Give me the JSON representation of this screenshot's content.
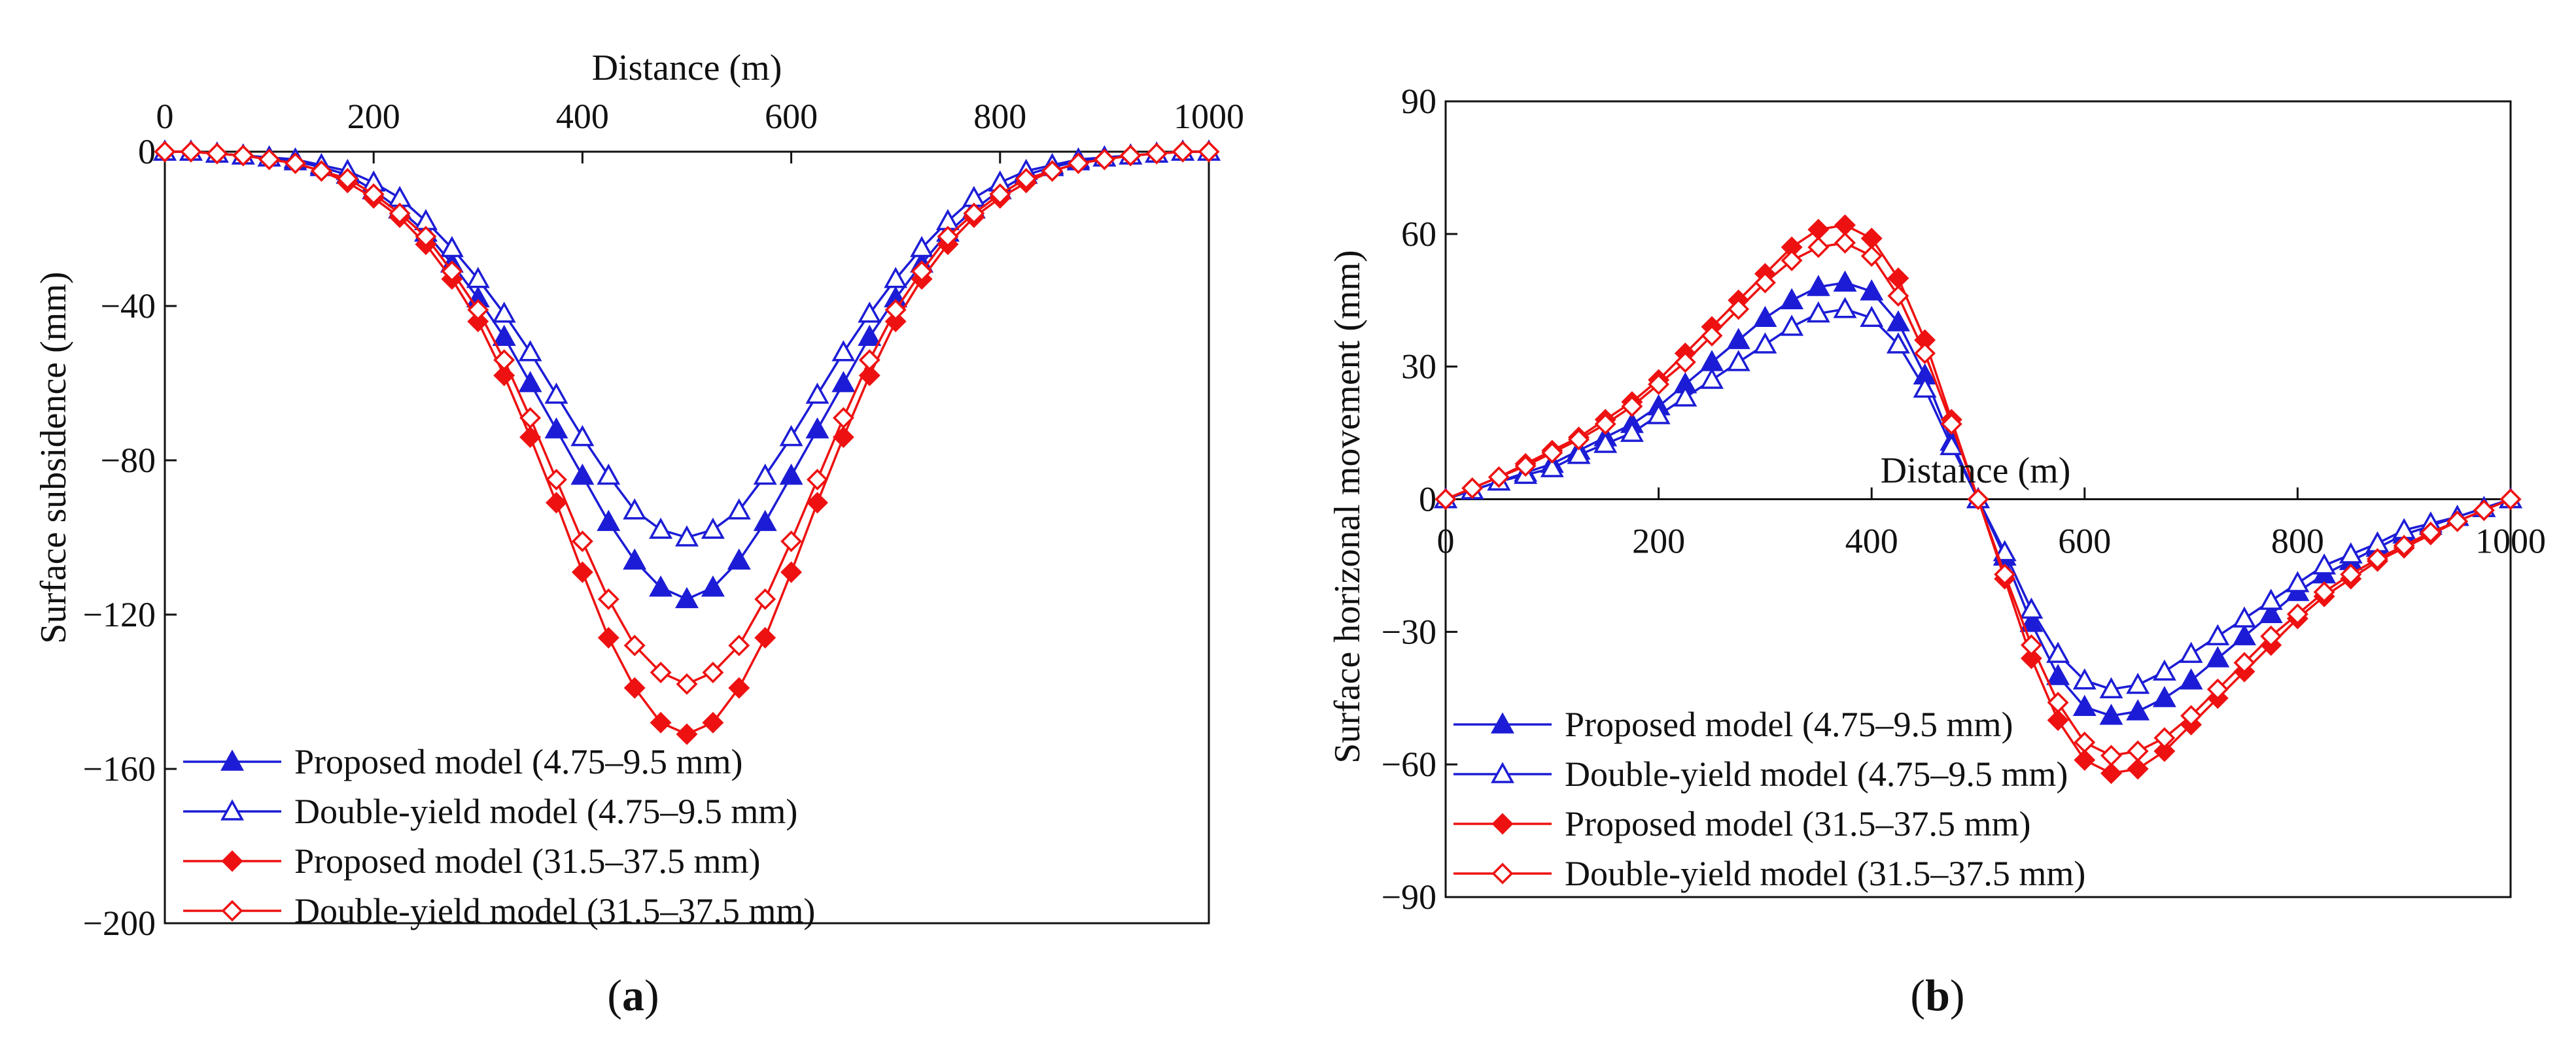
{
  "colors": {
    "proposed_small": "#1c1cd6",
    "double_small": "#1c1cd6",
    "proposed_large": "#ee1111",
    "double_large": "#ee1111",
    "axis": "#111111"
  },
  "chart_data": [
    {
      "id": "a",
      "type": "line",
      "panel_label": {
        "open": "(",
        "letter": "a",
        "close": ")"
      },
      "title": "",
      "xlabel": "Distance (m)",
      "xlabel_position": "top",
      "ylabel": "Surface subsidence (mm)",
      "xlim": [
        0,
        1000
      ],
      "ylim": [
        -200,
        0
      ],
      "xticks": [
        0,
        200,
        400,
        600,
        800,
        1000
      ],
      "xtick_labels": [
        "0",
        "200",
        "400",
        "600",
        "800",
        "1000"
      ],
      "yticks": [
        0,
        -40,
        -80,
        -120,
        -160,
        -200
      ],
      "ytick_labels": [
        "0",
        "−40",
        "−80",
        "−120",
        "−160",
        "−200"
      ],
      "x": [
        0,
        25,
        50,
        75,
        100,
        125,
        150,
        175,
        200,
        225,
        250,
        275,
        300,
        325,
        350,
        375,
        400,
        425,
        450,
        475,
        500,
        525,
        550,
        575,
        600,
        625,
        650,
        675,
        700,
        725,
        750,
        775,
        800,
        825,
        850,
        875,
        900,
        925,
        950,
        975,
        1000
      ],
      "legend_position": "bottom-left",
      "series": [
        {
          "name": "Proposed model (4.75–9.5 mm)",
          "color_key": "proposed_small",
          "marker": "triangle-filled",
          "values": [
            0,
            0,
            -0.5,
            -1,
            -1.5,
            -2.5,
            -4,
            -6,
            -10,
            -15,
            -21,
            -29,
            -38,
            -48,
            -60,
            -72,
            -84,
            -96,
            -106,
            -113,
            -116,
            -113,
            -106,
            -96,
            -84,
            -72,
            -60,
            -48,
            -38,
            -29,
            -21,
            -15,
            -10,
            -6,
            -4,
            -2.5,
            -1.5,
            -1,
            -0.5,
            0,
            0
          ]
        },
        {
          "name": "Double-yield model (4.75–9.5 mm)",
          "color_key": "double_small",
          "marker": "triangle-open",
          "values": [
            0,
            0,
            -0.5,
            -1,
            -1.5,
            -2,
            -3.5,
            -5,
            -8,
            -12,
            -18,
            -25,
            -33,
            -42,
            -52,
            -63,
            -74,
            -84,
            -93,
            -98,
            -100,
            -98,
            -93,
            -84,
            -74,
            -63,
            -52,
            -42,
            -33,
            -25,
            -18,
            -12,
            -8,
            -5,
            -3.5,
            -2,
            -1.5,
            -1,
            -0.5,
            0,
            0
          ]
        },
        {
          "name": "Proposed model  (31.5–37.5 mm)",
          "color_key": "proposed_large",
          "marker": "diamond-filled",
          "values": [
            0,
            0,
            -0.5,
            -1,
            -2,
            -3,
            -5,
            -8,
            -12,
            -17,
            -24,
            -33,
            -44,
            -58,
            -74,
            -91,
            -109,
            -126,
            -139,
            -148,
            -151,
            -148,
            -139,
            -126,
            -109,
            -91,
            -74,
            -58,
            -44,
            -33,
            -24,
            -17,
            -12,
            -8,
            -5,
            -3,
            -2,
            -1,
            -0.5,
            0,
            0
          ]
        },
        {
          "name": "Double-yield model (31.5–37.5 mm)",
          "color_key": "double_large",
          "marker": "diamond-open",
          "values": [
            0,
            0,
            -0.5,
            -1,
            -2,
            -3,
            -5,
            -7,
            -11,
            -16,
            -22,
            -31,
            -41,
            -54,
            -69,
            -85,
            -101,
            -116,
            -128,
            -135,
            -138,
            -135,
            -128,
            -116,
            -101,
            -85,
            -69,
            -54,
            -41,
            -31,
            -22,
            -16,
            -11,
            -7,
            -5,
            -3,
            -2,
            -1,
            -0.5,
            0,
            0
          ]
        }
      ]
    },
    {
      "id": "b",
      "type": "line",
      "panel_label": {
        "open": "(",
        "letter": "b",
        "close": ")"
      },
      "title": "",
      "xlabel": "Distance (m)",
      "xlabel_position": "middle",
      "ylabel": "Surface horizonal movement (mm)",
      "xlim": [
        0,
        1000
      ],
      "ylim": [
        -90,
        90
      ],
      "xticks": [
        0,
        200,
        400,
        600,
        800,
        1000
      ],
      "xtick_labels": [
        "0",
        "200",
        "400",
        "600",
        "800",
        "1000"
      ],
      "yticks": [
        90,
        60,
        30,
        0,
        -30,
        -60,
        -90
      ],
      "ytick_labels": [
        "90",
        "60",
        "30",
        "0",
        "−30",
        "−60",
        "−90"
      ],
      "x": [
        0,
        25,
        50,
        75,
        100,
        125,
        150,
        175,
        200,
        225,
        250,
        275,
        300,
        325,
        350,
        375,
        400,
        425,
        450,
        475,
        500,
        525,
        550,
        575,
        600,
        625,
        650,
        675,
        700,
        725,
        750,
        775,
        800,
        825,
        850,
        875,
        900,
        925,
        950,
        975,
        1000
      ],
      "legend_position": "bottom-left",
      "series": [
        {
          "name": "Proposed model (4.75–9.5 mm)",
          "color_key": "proposed_small",
          "marker": "triangle-filled",
          "values": [
            0,
            2,
            4,
            6,
            8,
            11,
            14,
            17,
            21,
            26,
            31,
            36,
            41,
            45,
            48,
            49,
            47,
            40,
            28,
            13,
            0,
            -13,
            -28,
            -40,
            -47,
            -49,
            -48,
            -45,
            -41,
            -36,
            -31,
            -26,
            -21,
            -17,
            -14,
            -11,
            -8,
            -6,
            -4,
            -2,
            0
          ]
        },
        {
          "name": "Double-yield model (4.75–9.5 mm)",
          "color_key": "double_small",
          "marker": "triangle-open",
          "values": [
            0,
            2,
            4,
            5.5,
            7,
            10,
            12.5,
            15,
            19,
            23,
            27,
            31,
            35,
            39,
            42,
            43,
            41,
            35,
            25,
            12,
            0,
            -12,
            -25,
            -35,
            -41,
            -43,
            -42,
            -39,
            -35,
            -31,
            -27,
            -23,
            -19,
            -15,
            -12.5,
            -10,
            -7,
            -5.5,
            -4,
            -2,
            0
          ]
        },
        {
          "name": "Proposed model (31.5–37.5 mm)",
          "color_key": "proposed_large",
          "marker": "diamond-filled",
          "values": [
            0,
            2.5,
            5,
            8,
            11,
            14,
            18,
            22,
            27,
            33,
            39,
            45,
            51,
            57,
            61,
            62,
            59,
            50,
            36,
            18,
            0,
            -18,
            -36,
            -50,
            -59,
            -62,
            -61,
            -57,
            -51,
            -45,
            -39,
            -33,
            -27,
            -22,
            -18,
            -14,
            -11,
            -8,
            -5,
            -2.5,
            0
          ]
        },
        {
          "name": "Double-yield model (31.5–37.5 mm)",
          "color_key": "double_large",
          "marker": "diamond-open",
          "values": [
            0,
            2.5,
            5,
            7.5,
            10.5,
            13.5,
            17,
            21,
            26,
            31,
            37,
            43,
            49,
            54,
            57,
            58,
            55,
            46,
            33,
            17,
            0,
            -17,
            -33,
            -46,
            -55,
            -58,
            -57,
            -54,
            -49,
            -43,
            -37,
            -31,
            -26,
            -21,
            -17,
            -13.5,
            -10.5,
            -7.5,
            -5,
            -2.5,
            0
          ]
        }
      ]
    }
  ]
}
